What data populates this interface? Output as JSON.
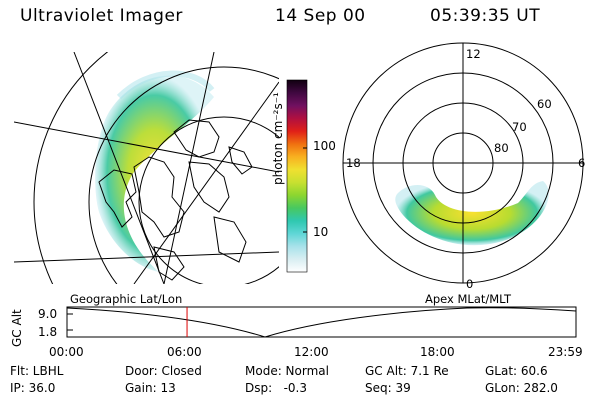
{
  "header": {
    "instrument": "Ultraviolet Imager",
    "date": "14 Sep 00",
    "time": "05:39:35 UT"
  },
  "colorbar": {
    "unit_label": "photon cm⁻²s⁻¹",
    "scale": "log",
    "ticks": [
      "100",
      "10"
    ],
    "colors": [
      "#ffffff",
      "#d8eef2",
      "#a8e2ea",
      "#5fd6d6",
      "#2fc8b0",
      "#48c860",
      "#8cd630",
      "#c8e030",
      "#f0e030",
      "#f8b020",
      "#f07010",
      "#e02018",
      "#b01040",
      "#701060",
      "#400840",
      "#100010"
    ]
  },
  "left_panel": {
    "title": "Geographic Lat/Lon",
    "projection": "geographic"
  },
  "right_panel": {
    "title": "Apex MLat/MLT",
    "mlt_labels": [
      "12",
      "18",
      "6",
      "0"
    ],
    "lat_labels": [
      "60",
      "70",
      "80"
    ]
  },
  "timeline": {
    "axis_title": "GC Alt",
    "y_ticks": [
      "9.0",
      "1.8"
    ],
    "x_ticks": [
      "00:00",
      "06:00",
      "12:00",
      "18:00",
      "23:59"
    ],
    "current_marker_hours": 5.66,
    "marker_color": "#dd0000"
  },
  "info": {
    "rows": [
      [
        "Flt: LBHL",
        "Door: Closed",
        "Mode: Normal",
        "GC Alt: 7.1 Re",
        "GLat: 60.6"
      ],
      [
        "IP: 36.0",
        "Gain: 13",
        "Dsp:   -0.3",
        "Seq: 39",
        "GLon: 282.0"
      ]
    ]
  }
}
